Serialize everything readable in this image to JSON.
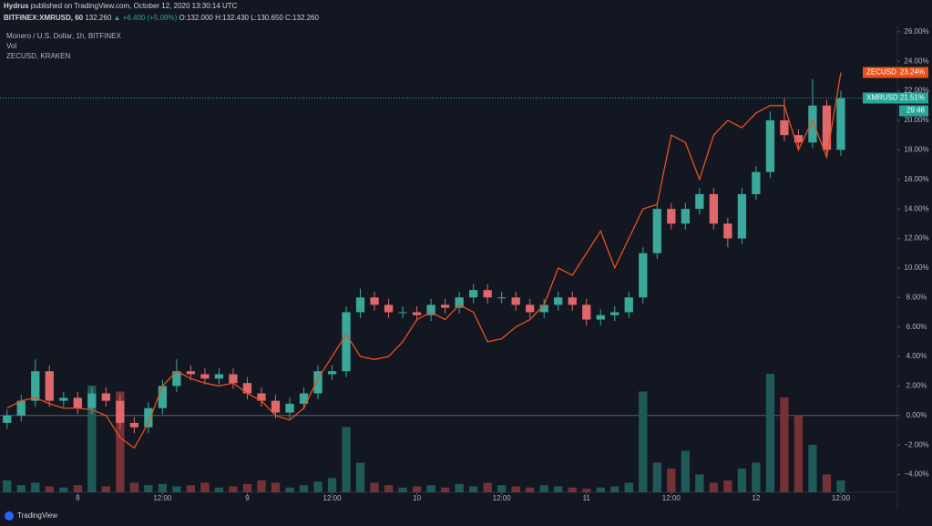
{
  "header": {
    "author": "Hydrus",
    "published": "published on TradingView.com, October 12, 2020 13:30:14 UTC",
    "symbol": "BITFINEX:XMRUSD, 60",
    "last": "132.260",
    "change": "▲ +6.400 (+5.09%)",
    "ohlc": "O:132.000 H:132.430 L:130.650 C:132.260"
  },
  "footer": {
    "brand": "TradingView"
  },
  "chart_data": {
    "type": "candlestick",
    "legend": [
      "Monero / U.S. Dollar, 1h, BITFINEX",
      "Vol",
      "ZECUSD, KRAKEN"
    ],
    "x": [
      0,
      2,
      4,
      6,
      8,
      10,
      12,
      14,
      16,
      18,
      20,
      22,
      24,
      26,
      28,
      30,
      32,
      34,
      36,
      38,
      40,
      42,
      44,
      46,
      48,
      50,
      52,
      54,
      56,
      58,
      60,
      62,
      64,
      66,
      68,
      70,
      72,
      74,
      76,
      78,
      80,
      82,
      84,
      86,
      88,
      90,
      92,
      94,
      96,
      98,
      100,
      102,
      104,
      106,
      108,
      110,
      112,
      114,
      116,
      118
    ],
    "ohlc": {
      "open": [
        -0.5,
        0,
        1,
        3,
        1,
        1.2,
        0.5,
        1.5,
        1,
        -0.5,
        -0.8,
        0.5,
        2,
        3,
        2.8,
        2.5,
        2.8,
        2.2,
        1.5,
        1,
        0.2,
        0.8,
        1.5,
        2.8,
        3,
        7,
        8,
        7.5,
        7,
        7,
        6.8,
        7.5,
        7.3,
        8,
        8.5,
        8,
        8,
        7.5,
        7,
        7.5,
        8,
        7.5,
        6.5,
        6.8,
        7,
        8,
        11,
        14,
        13,
        14,
        15,
        13,
        12,
        15,
        16.5,
        20,
        19,
        18.5,
        21,
        18
      ],
      "high": [
        0.4,
        1.4,
        3.8,
        3.4,
        1.6,
        1.6,
        1.9,
        1.9,
        1.4,
        -0.1,
        0.9,
        2.4,
        3.8,
        3.4,
        3.2,
        3.2,
        3.2,
        2.6,
        1.9,
        1.4,
        1.2,
        1.9,
        3.4,
        3.4,
        7.4,
        8.6,
        8.4,
        7.9,
        7.4,
        7.4,
        7.9,
        7.9,
        8.4,
        8.9,
        8.9,
        8.4,
        8.4,
        7.9,
        7.9,
        8.4,
        8.4,
        7.9,
        7.2,
        7.4,
        8.4,
        11.4,
        14.4,
        14.4,
        14.4,
        15.4,
        15.4,
        13.4,
        15.4,
        16.9,
        20.6,
        21.5,
        19.4,
        22.8,
        21.4,
        22.0
      ],
      "low": [
        -0.9,
        -0.4,
        0.6,
        0.6,
        0.6,
        0.1,
        0.1,
        0.6,
        -0.9,
        -1.2,
        -1.2,
        0.1,
        1.6,
        2.4,
        2.1,
        2.1,
        1.8,
        1.1,
        0.6,
        -0.2,
        -0.2,
        0.4,
        1.1,
        2.4,
        2.6,
        6.6,
        7.1,
        6.6,
        6.6,
        6.4,
        6.4,
        6.9,
        6.9,
        7.6,
        7.6,
        7.6,
        7.1,
        6.6,
        6.6,
        7.1,
        7.1,
        6.1,
        6.1,
        6.4,
        6.6,
        7.6,
        10.6,
        12.6,
        12.6,
        13.6,
        12.6,
        11.4,
        11.6,
        14.6,
        16.1,
        18.6,
        18.1,
        18.1,
        17.6,
        17.6
      ],
      "close": [
        0,
        1,
        3,
        1,
        1.2,
        0.5,
        1.5,
        1,
        -0.5,
        -0.8,
        0.5,
        2,
        3,
        2.8,
        2.5,
        2.8,
        2.2,
        1.5,
        1,
        0.2,
        0.8,
        1.5,
        3,
        3,
        7,
        8,
        7.5,
        7,
        7,
        6.8,
        7.5,
        7.3,
        8,
        8.5,
        8,
        8,
        7.5,
        7,
        7.5,
        8,
        7.5,
        6.5,
        6.8,
        7,
        8,
        11,
        14,
        13,
        14,
        15,
        13,
        12,
        15,
        16.5,
        20,
        19,
        18.5,
        21,
        18,
        21.5
      ]
    },
    "volume": [
      10,
      6,
      8,
      5,
      4,
      6,
      90,
      5,
      85,
      8,
      6,
      7,
      5,
      6,
      8,
      4,
      5,
      7,
      10,
      8,
      4,
      6,
      9,
      12,
      55,
      25,
      8,
      6,
      4,
      5,
      6,
      4,
      7,
      5,
      8,
      6,
      5,
      4,
      6,
      5,
      4,
      3,
      4,
      5,
      8,
      85,
      25,
      20,
      35,
      15,
      8,
      10,
      20,
      25,
      100,
      80,
      65,
      40,
      15,
      10
    ],
    "overlay": {
      "name": "ZECUSD",
      "color": "#e8521c",
      "values": [
        0.5,
        1.0,
        1.2,
        0.8,
        0.5,
        0.5,
        0.4,
        0,
        -1.5,
        -2.2,
        -0.5,
        2.0,
        3.0,
        2.5,
        2.2,
        2.0,
        2.2,
        1.5,
        1.0,
        0,
        -0.3,
        0.5,
        2.5,
        4,
        5.5,
        4,
        3.8,
        4.0,
        5,
        6.5,
        7,
        6.5,
        7.5,
        7,
        5,
        5.2,
        6,
        6.5,
        7.5,
        10,
        9.5,
        11,
        12.5,
        10,
        12,
        14,
        14.3,
        19,
        18.5,
        16,
        19,
        20,
        19.5,
        20.5,
        21,
        21,
        18,
        20,
        17.5,
        23.24
      ]
    },
    "colors": {
      "up": "#3aa89b",
      "down": "#e0676a",
      "up_volume": "#1f5a57",
      "down_volume": "#743237"
    },
    "baseline": 0,
    "grid": false,
    "xlim": [
      -1,
      126
    ],
    "xticks": [
      {
        "value": 10,
        "label": "8"
      },
      {
        "value": 22,
        "label": "12:00"
      },
      {
        "value": 34,
        "label": "9"
      },
      {
        "value": 46,
        "label": "12:00"
      },
      {
        "value": 58,
        "label": "10"
      },
      {
        "value": 70,
        "label": "12:00"
      },
      {
        "value": 82,
        "label": "11"
      },
      {
        "value": 94,
        "label": "12:00"
      },
      {
        "value": 106,
        "label": "12"
      },
      {
        "value": 118,
        "label": "12:00"
      }
    ],
    "ylim": [
      -5.2,
      26.3
    ],
    "yticks": [
      {
        "value": 26,
        "label": "26.00%"
      },
      {
        "value": 24,
        "label": "24.00%"
      },
      {
        "value": 22,
        "label": "22.00%"
      },
      {
        "value": 20,
        "label": "20.00%"
      },
      {
        "value": 18,
        "label": "18.00%"
      },
      {
        "value": 16,
        "label": "16.00%"
      },
      {
        "value": 14,
        "label": "14.00%"
      },
      {
        "value": 12,
        "label": "12.00%"
      },
      {
        "value": 10,
        "label": "10.00%"
      },
      {
        "value": 8,
        "label": "8.00%"
      },
      {
        "value": 6,
        "label": "6.00%"
      },
      {
        "value": 4,
        "label": "4.00%"
      },
      {
        "value": 2,
        "label": "2.00%"
      },
      {
        "value": 0,
        "label": "0.00%"
      },
      {
        "value": -2,
        "label": "−2.00%"
      },
      {
        "value": -4,
        "label": "−4.00%"
      }
    ],
    "price_tags": [
      {
        "name": "ZECUSD",
        "label": "23.24%",
        "value": 23.24,
        "color": "#e8521c"
      },
      {
        "name": "XMRUSD",
        "label": "21.51%",
        "value": 21.51,
        "color": "#26a69a"
      }
    ],
    "countdown": "29:48"
  }
}
